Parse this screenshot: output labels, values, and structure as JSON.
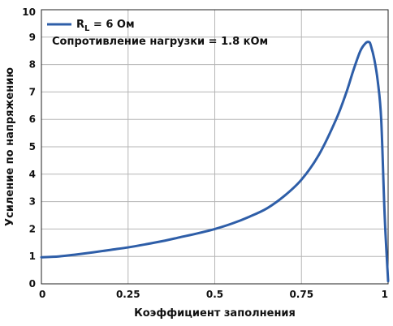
{
  "chart_data": {
    "type": "line",
    "xlabel": "Коэффициент заполнения",
    "ylabel": "Усиление по напряжению",
    "xlim": [
      0,
      1
    ],
    "ylim": [
      0,
      10
    ],
    "x_ticks": [
      "0",
      "0.25",
      "0.5",
      "0.75",
      "1"
    ],
    "y_ticks": [
      "0",
      "1",
      "2",
      "3",
      "4",
      "5",
      "6",
      "7",
      "8",
      "9",
      "10"
    ],
    "grid": true,
    "legend_position": "top-left",
    "legend": {
      "series_name_main": "R",
      "series_name_sub": "L",
      "series_name_rest": " = 6 Ом",
      "note": "Сопротивление нагрузки = 1.8 кОм"
    },
    "series": [
      {
        "name": "RL = 6 Ом",
        "color": "#2e5ea8",
        "x": [
          0,
          0.05,
          0.1,
          0.15,
          0.2,
          0.25,
          0.3,
          0.35,
          0.4,
          0.45,
          0.5,
          0.55,
          0.6,
          0.65,
          0.7,
          0.75,
          0.8,
          0.85,
          0.88,
          0.9,
          0.92,
          0.935,
          0.945,
          0.95,
          0.96,
          0.97,
          0.98,
          0.99,
          1.0
        ],
        "y": [
          0.97,
          1.0,
          1.07,
          1.15,
          1.24,
          1.33,
          1.44,
          1.56,
          1.7,
          1.84,
          2.0,
          2.2,
          2.45,
          2.75,
          3.2,
          3.8,
          4.7,
          6.0,
          7.0,
          7.8,
          8.5,
          8.78,
          8.82,
          8.7,
          8.2,
          7.4,
          6.0,
          2.5,
          0.1
        ]
      }
    ]
  }
}
